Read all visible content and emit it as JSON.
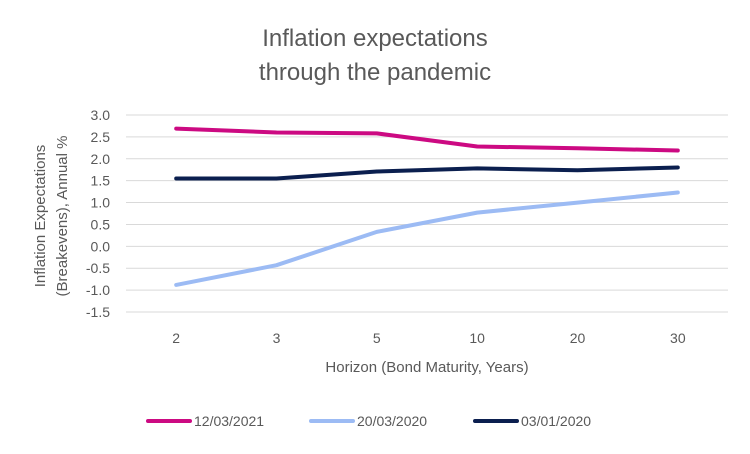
{
  "chart_data": {
    "type": "line",
    "title_lines": [
      "Inflation expectations",
      "through the pandemic"
    ],
    "xlabel": "Horizon (Bond Maturity, Years)",
    "ylabel_lines": [
      "Inflation Expectations",
      "(Breakevens), Annual %"
    ],
    "categories": [
      "2",
      "3",
      "5",
      "10",
      "20",
      "30"
    ],
    "y_ticks": [
      "3.0",
      "2.5",
      "2.0",
      "1.5",
      "1.0",
      "0.5",
      "0.0",
      "-0.5",
      "-1.0",
      "-1.5"
    ],
    "ylim": [
      -1.5,
      3.0
    ],
    "grid": true,
    "legend_position": "bottom",
    "series": [
      {
        "name": "12/03/2021",
        "color": "#cc0a82",
        "values": [
          2.69,
          2.6,
          2.58,
          2.28,
          2.24,
          2.19
        ]
      },
      {
        "name": "20/03/2020",
        "color": "#9cbbf4",
        "values": [
          -0.88,
          -0.43,
          0.33,
          0.77,
          1.0,
          1.23
        ]
      },
      {
        "name": "03/01/2020",
        "color": "#0b1f4f",
        "values": [
          1.55,
          1.55,
          1.71,
          1.78,
          1.74,
          1.8
        ]
      }
    ]
  }
}
